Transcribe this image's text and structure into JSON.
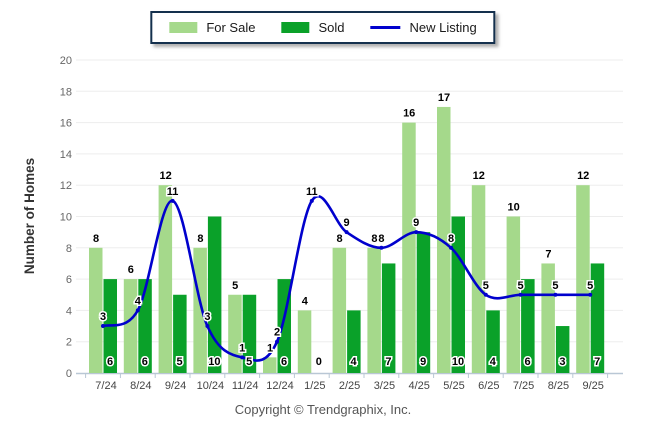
{
  "chart_data": {
    "type": "bar",
    "title": "",
    "categories": [
      "7/24",
      "8/24",
      "9/24",
      "10/24",
      "11/24",
      "12/24",
      "1/25",
      "2/25",
      "3/25",
      "4/25",
      "5/25",
      "6/25",
      "7/25",
      "8/25",
      "9/25"
    ],
    "series": [
      {
        "name": "For Sale",
        "kind": "bar",
        "color": "#a5d98b",
        "values": [
          8,
          6,
          12,
          8,
          5,
          1,
          4,
          8,
          8,
          16,
          17,
          12,
          10,
          7,
          12
        ]
      },
      {
        "name": "Sold",
        "kind": "bar",
        "color": "#0aa129",
        "values": [
          6,
          6,
          5,
          10,
          5,
          6,
          0,
          4,
          7,
          9,
          10,
          4,
          6,
          3,
          7
        ]
      },
      {
        "name": "New Listing",
        "kind": "line",
        "color": "#0101cd",
        "values": [
          3,
          4,
          11,
          3,
          1,
          2,
          11,
          9,
          8,
          9,
          8,
          5,
          5,
          5,
          5
        ]
      }
    ],
    "xlabel": "",
    "ylabel": "Number of Homes",
    "ylim": [
      0,
      20
    ],
    "ytick_step": 2,
    "grid": true,
    "legend_position": "top"
  },
  "footer": {
    "copyright": "Copyright © Trendgraphix, Inc."
  },
  "colors": {
    "grid": "#ededed",
    "axis": "#b9c7d5",
    "y_tick_text": "#666666",
    "x_tick_text": "#444444",
    "value_label_text": "#000000",
    "y_title_text": "#333333",
    "legend_border": "#14304d",
    "footer_text": "#555555"
  }
}
